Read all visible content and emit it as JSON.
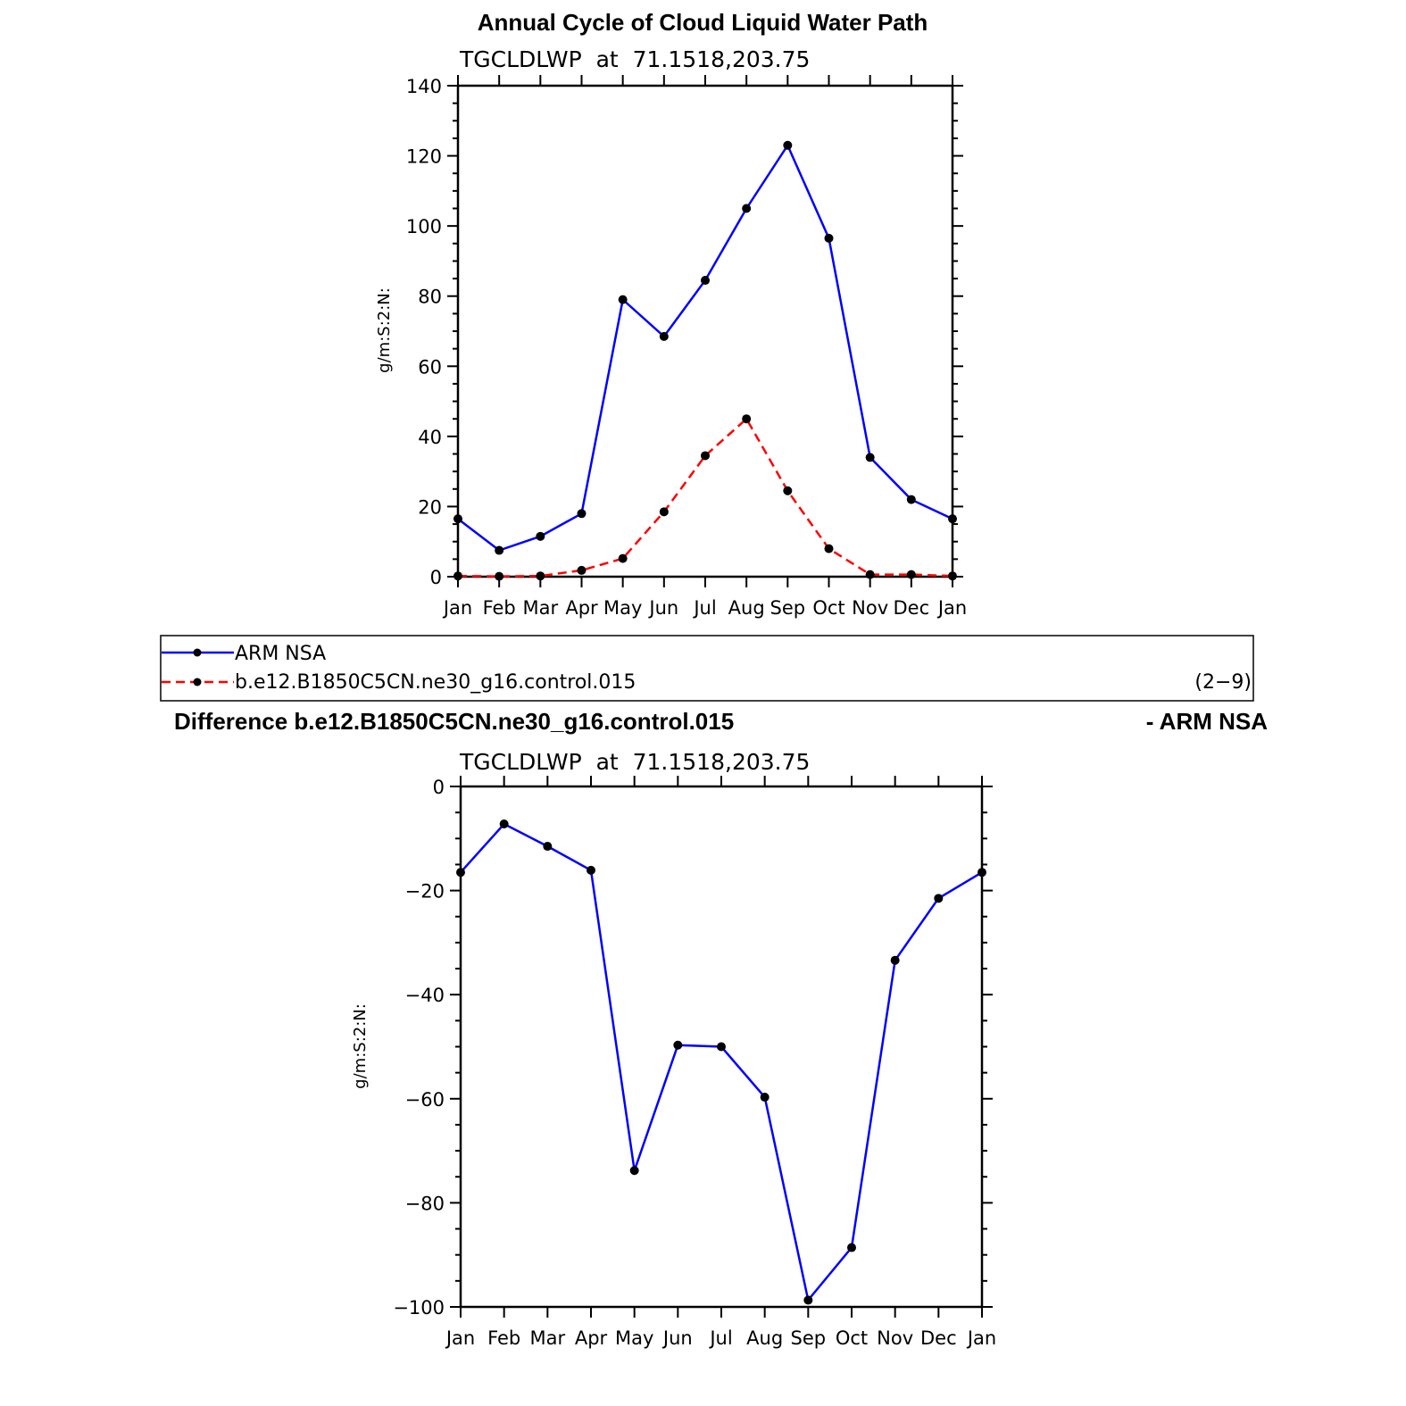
{
  "figure": {
    "top_title": "Annual Cycle of Cloud Liquid Water Path",
    "diff_title_left": "Difference b.e12.B1850C5CN.ne30_g16.control.015",
    "diff_title_right": "- ARM NSA",
    "legend": {
      "items": [
        {
          "label": "ARM NSA",
          "color": "#0000ff",
          "dash": "solid"
        },
        {
          "label": "b.e12.B1850C5CN.ne30_g16.control.015",
          "color": "#ff0000",
          "dash": "dashed"
        }
      ],
      "note": "(2−9)"
    }
  },
  "chart_data": [
    {
      "type": "line",
      "subtitle": "TGCLDLWP  at  71.1518,203.75",
      "xlabel": "",
      "ylabel": "g/m:S:2:N:",
      "categories": [
        "Jan",
        "Feb",
        "Mar",
        "Apr",
        "May",
        "Jun",
        "Jul",
        "Aug",
        "Sep",
        "Oct",
        "Nov",
        "Dec",
        "Jan"
      ],
      "ylim": [
        0,
        140
      ],
      "yticks": [
        0,
        20,
        40,
        60,
        80,
        100,
        120,
        140
      ],
      "series": [
        {
          "name": "ARM NSA",
          "color": "#0000ff",
          "dash": "solid",
          "values": [
            16.5,
            7.5,
            11.5,
            18,
            79,
            68.5,
            84.5,
            105,
            123,
            96.5,
            34,
            22,
            16.5
          ]
        },
        {
          "name": "b.e12.B1850C5CN.ne30_g16.control.015",
          "color": "#ff0000",
          "dash": "dashed",
          "values": [
            0.2,
            0.1,
            0.2,
            1.8,
            5.2,
            18.5,
            34.5,
            45,
            24.5,
            8,
            0.6,
            0.6,
            0.2
          ]
        }
      ],
      "grid": false
    },
    {
      "type": "line",
      "subtitle": "TGCLDLWP  at  71.1518,203.75",
      "xlabel": "",
      "ylabel": "g/m:S:2:N:",
      "categories": [
        "Jan",
        "Feb",
        "Mar",
        "Apr",
        "May",
        "Jun",
        "Jul",
        "Aug",
        "Sep",
        "Oct",
        "Nov",
        "Dec",
        "Jan"
      ],
      "ylim": [
        -100,
        0
      ],
      "yticks": [
        0,
        -20,
        -40,
        -60,
        -80,
        -100
      ],
      "series": [
        {
          "color": "#0000ff",
          "dash": "solid",
          "values": [
            -16.5,
            -7.2,
            -11.5,
            -16.1,
            -73.8,
            -49.7,
            -50.0,
            -59.7,
            -98.7,
            -88.6,
            -33.4,
            -21.5,
            -16.5
          ]
        }
      ],
      "grid": false
    }
  ]
}
